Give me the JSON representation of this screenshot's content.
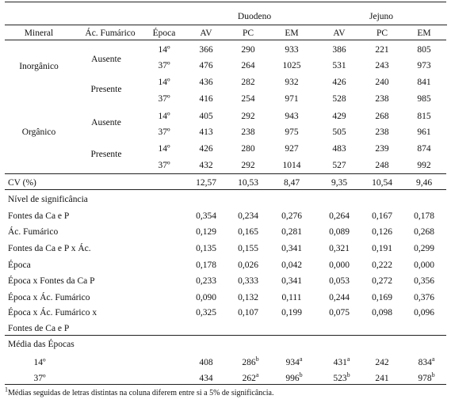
{
  "table": {
    "groups": [
      "Duodeno",
      "Jejuno"
    ],
    "columns": [
      "Mineral",
      "Ác. Fumárico",
      "Época",
      "AV",
      "PC",
      "EM",
      "AV",
      "PC",
      "EM"
    ],
    "rows": [
      {
        "mineral": "Inorgânico",
        "fumarico": "Ausente",
        "epoca": "14º",
        "v": [
          "366",
          "290",
          "933",
          "386",
          "221",
          "805"
        ]
      },
      {
        "mineral": "",
        "fumarico": "",
        "epoca": "37º",
        "v": [
          "476",
          "264",
          "1025",
          "531",
          "243",
          "973"
        ]
      },
      {
        "mineral": "",
        "fumarico": "Presente",
        "epoca": "14º",
        "v": [
          "436",
          "282",
          "932",
          "426",
          "240",
          "841"
        ]
      },
      {
        "mineral": "",
        "fumarico": "",
        "epoca": "37º",
        "v": [
          "416",
          "254",
          "971",
          "528",
          "238",
          "985"
        ]
      },
      {
        "mineral": "Orgânico",
        "fumarico": "Ausente",
        "epoca": "14º",
        "v": [
          "405",
          "292",
          "943",
          "429",
          "268",
          "815"
        ]
      },
      {
        "mineral": "",
        "fumarico": "",
        "epoca": "37º",
        "v": [
          "413",
          "238",
          "975",
          "505",
          "238",
          "961"
        ]
      },
      {
        "mineral": "",
        "fumarico": "Presente",
        "epoca": "14º",
        "v": [
          "426",
          "280",
          "927",
          "483",
          "239",
          "874"
        ]
      },
      {
        "mineral": "",
        "fumarico": "",
        "epoca": "37º",
        "v": [
          "432",
          "292",
          "1014",
          "527",
          "248",
          "992"
        ]
      }
    ],
    "cv": {
      "label": "CV (%)",
      "v": [
        "12,57",
        "10,53",
        "8,47",
        "9,35",
        "10,54",
        "9,46"
      ]
    },
    "significance": {
      "title": "Nível de significância",
      "rows": [
        {
          "label": "Fontes da Ca e P",
          "v": [
            "0,354",
            "0,234",
            "0,276",
            "0,264",
            "0,167",
            "0,178"
          ]
        },
        {
          "label": "Ác. Fumárico",
          "v": [
            "0,129",
            "0,165",
            "0,281",
            "0,089",
            "0,126",
            "0,268"
          ]
        },
        {
          "label": "Fontes da Ca e P x Ác.",
          "v": [
            "0,135",
            "0,155",
            "0,341",
            "0,321",
            "0,191",
            "0,299"
          ]
        },
        {
          "label": "Época",
          "v": [
            "0,178",
            "0,026",
            "0,042",
            "0,000",
            "0,222",
            "0,000"
          ]
        },
        {
          "label": "Época x Fontes da Ca  P",
          "v": [
            "0,233",
            "0,333",
            "0,341",
            "0,053",
            "0,272",
            "0,356"
          ]
        },
        {
          "label": "Época x Ác. Fumárico",
          "v": [
            "0,090",
            "0,132",
            "0,111",
            "0,244",
            "0,169",
            "0,376"
          ]
        },
        {
          "label": "Época x Ác. Fumárico x",
          "v": [
            "0,325",
            "0,107",
            "0,199",
            "0,075",
            "0,098",
            "0,096"
          ]
        }
      ],
      "continuation": "Fontes de Ca e P"
    },
    "means": {
      "title": "Média das Épocas",
      "rows": [
        {
          "label": "14º",
          "v": [
            {
              "n": "408",
              "s": ""
            },
            {
              "n": "286",
              "s": "b"
            },
            {
              "n": "934",
              "s": "a"
            },
            {
              "n": "431",
              "s": "a"
            },
            {
              "n": "242",
              "s": ""
            },
            {
              "n": "834",
              "s": "a"
            }
          ]
        },
        {
          "label": "37º",
          "v": [
            {
              "n": "434",
              "s": ""
            },
            {
              "n": "262",
              "s": "a"
            },
            {
              "n": "996",
              "s": "b"
            },
            {
              "n": "523",
              "s": "b"
            },
            {
              "n": "241",
              "s": ""
            },
            {
              "n": "978",
              "s": "b"
            }
          ]
        }
      ]
    },
    "footnote": {
      "mark": "1",
      "text": "Médias seguidas de letras distintas na coluna diferem entre si a 5% de significância."
    }
  }
}
